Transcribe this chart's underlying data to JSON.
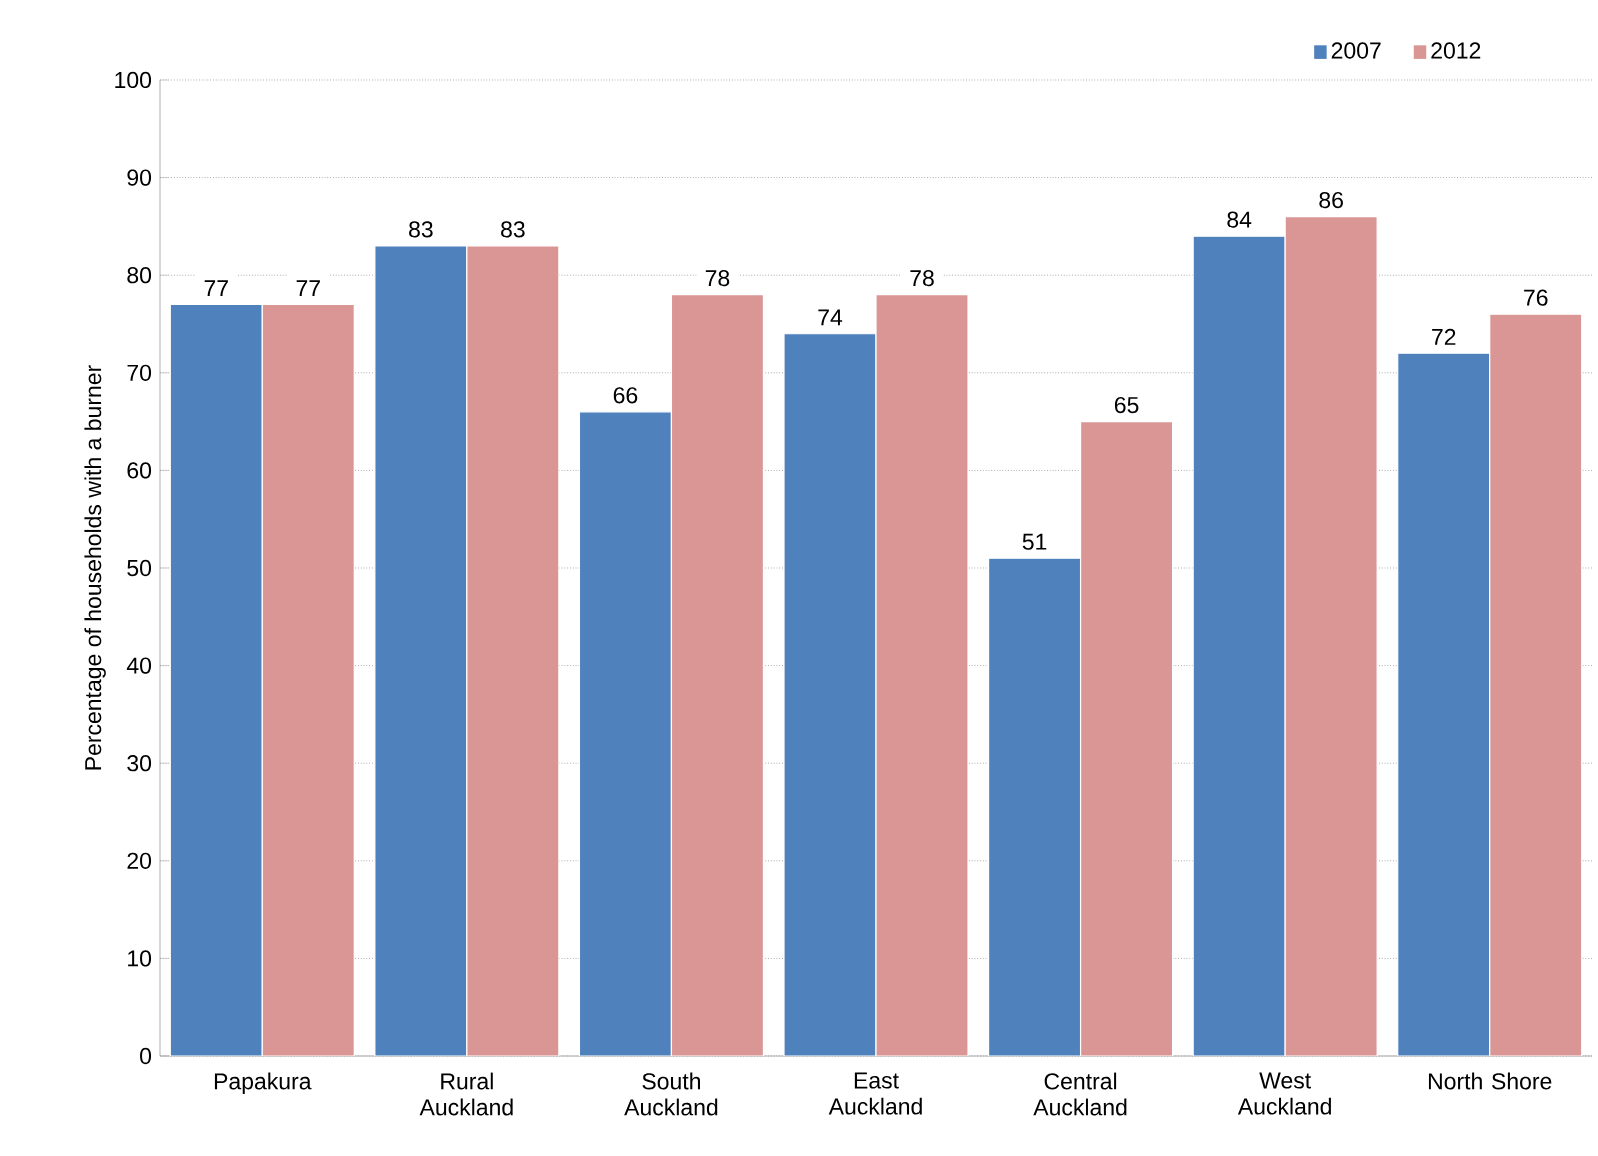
{
  "chart_data": {
    "type": "bar",
    "ylabel": "Percentage of households with a burner",
    "categories": [
      "Papakura",
      "Rural Auckland",
      "South Auckland",
      "East Auckland",
      "Central Auckland",
      "West Auckland",
      "North Shore"
    ],
    "series": [
      {
        "name": "2007",
        "color": "#4f81bd",
        "values": [
          77,
          83,
          66,
          74,
          51,
          84,
          72
        ]
      },
      {
        "name": "2012",
        "color": "#d99694",
        "values": [
          77,
          83,
          78,
          78,
          65,
          86,
          76
        ]
      }
    ],
    "ylim": [
      0,
      100
    ],
    "yticks": [
      0,
      10,
      20,
      30,
      40,
      50,
      60,
      70,
      80,
      90,
      100
    ],
    "grid": "y",
    "legend": "top right",
    "data_labels": true
  }
}
